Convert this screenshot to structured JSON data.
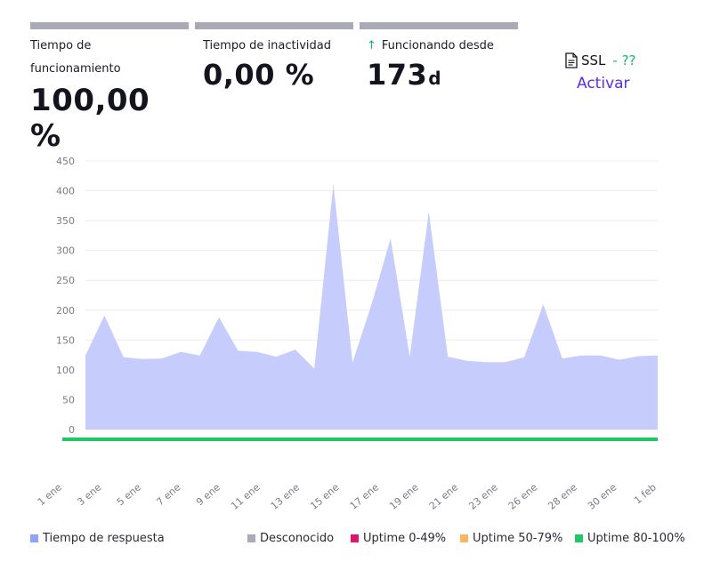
{
  "cards": {
    "uptime": {
      "label_line1": "Tiempo de",
      "label_line2": "funcionamiento",
      "value": "100,00 %"
    },
    "downtime": {
      "label": "Tiempo de inactividad",
      "value": "0,00 %"
    },
    "since": {
      "label": "Funcionando desde",
      "value": "173",
      "unit": "d",
      "icon": "arrow-up-icon"
    }
  },
  "ssl": {
    "label": "SSL",
    "status": "- ??",
    "action": "Activar",
    "icon": "document-icon"
  },
  "colors": {
    "response_fill": "#c6cdfc",
    "unknown": "#a9a9b8",
    "uptime_low": "#e0136e",
    "uptime_mid": "#f7b660",
    "uptime_high": "#1fc864",
    "accent": "#5b2be6"
  },
  "chart_data": {
    "type": "area",
    "ylim": [
      0,
      450
    ],
    "yticks": [
      "0",
      "50",
      "100",
      "150",
      "200",
      "250",
      "300",
      "350",
      "400",
      "450"
    ],
    "xtick_labels": [
      "1 ene",
      "3 ene",
      "5 ene",
      "7 ene",
      "9 ene",
      "11 ene",
      "13 ene",
      "15 ene",
      "17 ene",
      "19 ene",
      "21 ene",
      "23 ene",
      "26 ene",
      "28 ene",
      "30 ene",
      "1 feb"
    ],
    "series": [
      {
        "name": "Tiempo de respuesta",
        "values": [
          124,
          191,
          121,
          118,
          119,
          130,
          124,
          188,
          132,
          130,
          122,
          134,
          102,
          411,
          112,
          210,
          320,
          122,
          365,
          122,
          115,
          113,
          113,
          121,
          210,
          119,
          124,
          124,
          117,
          123,
          124
        ]
      }
    ],
    "status_band": "Uptime 80-100%",
    "grid": true,
    "legend_position": "bottom"
  },
  "legend": [
    {
      "label": "Tiempo de respuesta",
      "color": "#8da4fb"
    },
    {
      "label": "Desconocido",
      "color": "#a9a9b8"
    },
    {
      "label": "Uptime 0-49%",
      "color": "#e0136e"
    },
    {
      "label": "Uptime 50-79%",
      "color": "#f7b660"
    },
    {
      "label": "Uptime 80-100%",
      "color": "#1fc864"
    }
  ]
}
